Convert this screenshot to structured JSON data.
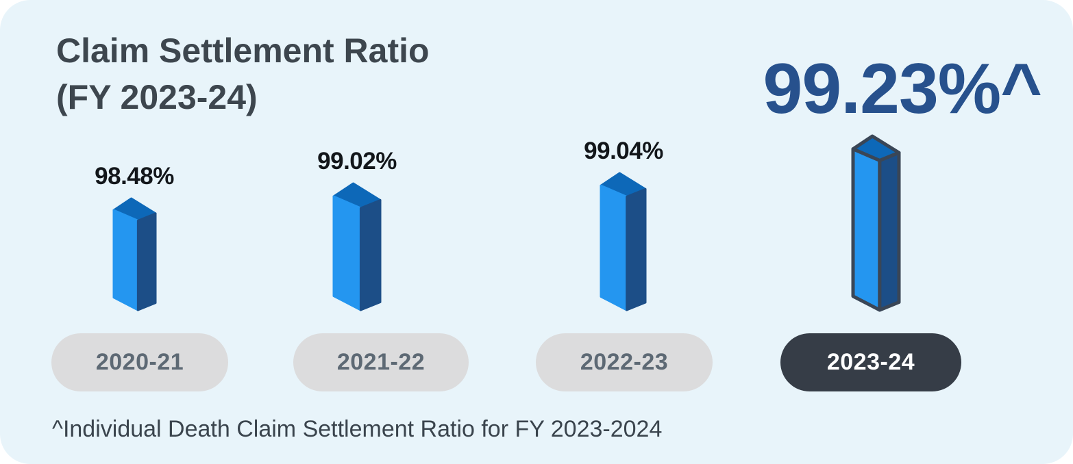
{
  "header": {
    "title_line1": "Claim Settlement Ratio",
    "title_line2": "(FY 2023-24)"
  },
  "colors": {
    "card_bg": "#e8f4fa",
    "title_text": "#3d464e",
    "highlight_text": "#27518d",
    "value_label_text": "#12161a",
    "bar_front": "#2496f0",
    "bar_side": "#1c4e87",
    "bar_top": "#0d68b8",
    "bar_outline": "#3a4656",
    "pill_bg": "#dcdcdd",
    "pill_text": "#5d6974",
    "pill_selected_bg": "#363d47",
    "pill_selected_text": "#ffffff"
  },
  "chart_data": {
    "type": "bar",
    "title": "Claim Settlement Ratio (FY 2023-24)",
    "categories": [
      "2020-21",
      "2021-22",
      "2022-23",
      "2023-24"
    ],
    "values": [
      98.48,
      99.02,
      99.04,
      99.23
    ],
    "value_labels": [
      "98.48%",
      "99.02%",
      "99.04%",
      "99.23%^"
    ],
    "unit": "%",
    "highlighted_index": 3,
    "highlighted_value_label": "99.23%^",
    "ylim": [
      98,
      99.5
    ],
    "legend": false,
    "grid": false,
    "footnote": "^Individual Death Claim Settlement Ratio for FY 2023-2024"
  }
}
